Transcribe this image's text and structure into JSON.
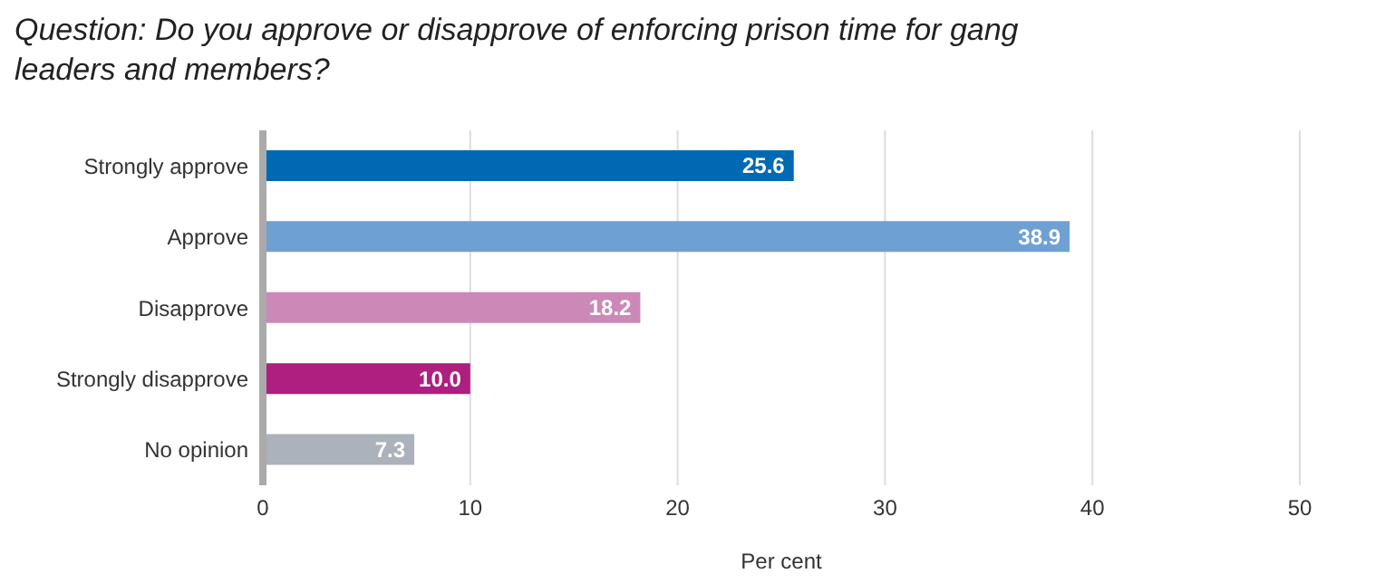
{
  "chart_data": {
    "type": "bar",
    "orientation": "horizontal",
    "title": "Question: Do you approve or disapprove of enforcing prison time for gang leaders and members?",
    "xlabel": "Per cent",
    "categories": [
      "Strongly approve",
      "Approve",
      "Disapprove",
      "Strongly disapprove",
      "No opinion"
    ],
    "values": [
      25.6,
      38.9,
      18.2,
      10.0,
      7.3
    ],
    "colors": [
      "#0069b4",
      "#6fa0d3",
      "#cc88b6",
      "#ae1f80",
      "#acb2bb"
    ],
    "value_labels": [
      "25.6",
      "38.9",
      "18.2",
      "10.0",
      "7.3"
    ],
    "xlim": [
      0,
      50
    ],
    "xticks": [
      0,
      10,
      20,
      30,
      40,
      50
    ],
    "grid": "x"
  }
}
